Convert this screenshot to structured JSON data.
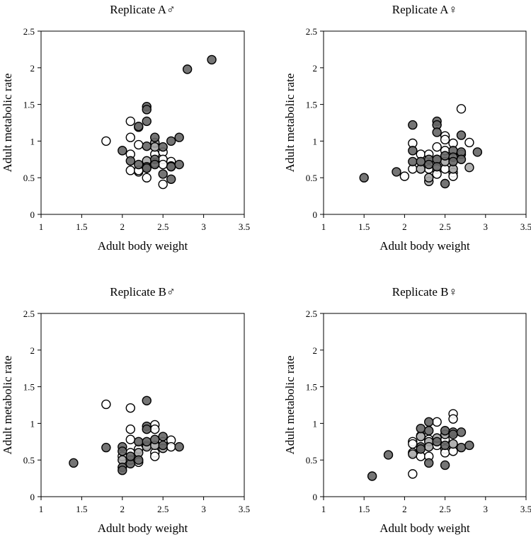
{
  "chart_data": [
    {
      "type": "scatter",
      "title": "Replicate A♂",
      "xlabel": "Adult body weight",
      "ylabel": "Adult metabolic rate",
      "xlim": [
        1,
        3.5
      ],
      "ylim": [
        0,
        2.5
      ],
      "xticks": [
        "1",
        "1.5",
        "2",
        "2.5",
        "3",
        "3.5"
      ],
      "yticks": [
        "0",
        "0.5",
        "1",
        "1.5",
        "2",
        "2.5"
      ],
      "series": [
        {
          "name": "white",
          "color": "#ffffff",
          "points": [
            [
              1.8,
              1.0
            ],
            [
              2.1,
              1.27
            ],
            [
              2.1,
              1.05
            ],
            [
              2.1,
              0.82
            ],
            [
              2.1,
              0.6
            ],
            [
              2.2,
              0.95
            ],
            [
              2.2,
              0.58
            ],
            [
              2.2,
              0.6
            ],
            [
              2.3,
              0.5
            ],
            [
              2.4,
              0.97
            ],
            [
              2.4,
              0.82
            ],
            [
              2.4,
              0.7
            ],
            [
              2.5,
              0.85
            ],
            [
              2.5,
              0.75
            ],
            [
              2.5,
              0.68
            ],
            [
              2.5,
              0.41
            ],
            [
              2.6,
              0.72
            ]
          ]
        },
        {
          "name": "dark",
          "color": "#666666",
          "points": [
            [
              2.0,
              0.87
            ],
            [
              2.1,
              0.73
            ],
            [
              2.2,
              1.2
            ],
            [
              2.2,
              0.68
            ],
            [
              2.3,
              1.47
            ],
            [
              2.3,
              1.43
            ],
            [
              2.3,
              1.27
            ],
            [
              2.3,
              0.93
            ],
            [
              2.3,
              0.65
            ],
            [
              2.3,
              0.63
            ],
            [
              2.4,
              1.05
            ],
            [
              2.4,
              0.75
            ],
            [
              2.4,
              0.68
            ],
            [
              2.5,
              0.92
            ],
            [
              2.5,
              0.55
            ],
            [
              2.6,
              1.0
            ],
            [
              2.6,
              0.48
            ],
            [
              2.6,
              0.65
            ],
            [
              2.7,
              1.05
            ],
            [
              2.7,
              0.68
            ],
            [
              2.8,
              1.98
            ],
            [
              3.1,
              2.11
            ]
          ]
        },
        {
          "name": "light",
          "color": "#a8a8a8",
          "points": [
            [
              2.2,
              1.19
            ],
            [
              2.3,
              0.73
            ],
            [
              2.4,
              0.98
            ],
            [
              2.4,
              0.92
            ],
            [
              2.6,
              0.66
            ]
          ]
        }
      ]
    },
    {
      "type": "scatter",
      "title": "Replicate A♀",
      "xlabel": "Adult body weight",
      "ylabel": "Adult metabolic rate",
      "xlim": [
        1,
        3.5
      ],
      "ylim": [
        0,
        2.5
      ],
      "xticks": [
        "1",
        "1.5",
        "2",
        "2.5",
        "3",
        "3.5"
      ],
      "yticks": [
        "0",
        "0.5",
        "1",
        "1.5",
        "2",
        "2.5"
      ],
      "series": [
        {
          "name": "white",
          "color": "#ffffff",
          "points": [
            [
              2.0,
              0.52
            ],
            [
              2.1,
              0.97
            ],
            [
              2.1,
              0.62
            ],
            [
              2.2,
              0.82
            ],
            [
              2.2,
              0.62
            ],
            [
              2.3,
              0.82
            ],
            [
              2.3,
              0.62
            ],
            [
              2.4,
              0.92
            ],
            [
              2.4,
              0.62
            ],
            [
              2.4,
              0.55
            ],
            [
              2.5,
              1.07
            ],
            [
              2.5,
              1.02
            ],
            [
              2.5,
              0.87
            ],
            [
              2.5,
              0.62
            ],
            [
              2.6,
              0.97
            ],
            [
              2.6,
              0.57
            ],
            [
              2.6,
              0.52
            ],
            [
              2.7,
              1.44
            ],
            [
              2.8,
              0.98
            ]
          ]
        },
        {
          "name": "dark",
          "color": "#666666",
          "points": [
            [
              1.5,
              0.5
            ],
            [
              1.9,
              0.58
            ],
            [
              2.1,
              1.22
            ],
            [
              2.1,
              0.87
            ],
            [
              2.1,
              0.72
            ],
            [
              2.2,
              0.72
            ],
            [
              2.3,
              0.75
            ],
            [
              2.3,
              0.68
            ],
            [
              2.4,
              1.27
            ],
            [
              2.4,
              1.22
            ],
            [
              2.4,
              1.12
            ],
            [
              2.4,
              0.75
            ],
            [
              2.4,
              0.65
            ],
            [
              2.5,
              0.42
            ],
            [
              2.5,
              0.8
            ],
            [
              2.6,
              0.87
            ],
            [
              2.6,
              0.78
            ],
            [
              2.6,
              0.72
            ],
            [
              2.7,
              1.08
            ],
            [
              2.7,
              0.85
            ],
            [
              2.7,
              0.75
            ],
            [
              2.9,
              0.85
            ]
          ]
        },
        {
          "name": "light",
          "color": "#a8a8a8",
          "points": [
            [
              2.2,
              0.62
            ],
            [
              2.3,
              0.45
            ],
            [
              2.3,
              0.5
            ],
            [
              2.4,
              0.75
            ],
            [
              2.5,
              0.72
            ],
            [
              2.6,
              0.62
            ],
            [
              2.7,
              0.82
            ],
            [
              2.8,
              0.64
            ]
          ]
        }
      ]
    },
    {
      "type": "scatter",
      "title": "Replicate B♂",
      "xlabel": "Adult body weight",
      "ylabel": "Adult metabolic rate",
      "xlim": [
        1,
        3.5
      ],
      "ylim": [
        0,
        2.5
      ],
      "xticks": [
        "1",
        "1.5",
        "2",
        "2.5",
        "3",
        "3.5"
      ],
      "yticks": [
        "0",
        "0.5",
        "1",
        "1.5",
        "2",
        "2.5"
      ],
      "series": [
        {
          "name": "white",
          "color": "#ffffff",
          "points": [
            [
              1.8,
              1.26
            ],
            [
              2.1,
              1.21
            ],
            [
              2.1,
              0.92
            ],
            [
              2.1,
              0.78
            ],
            [
              2.0,
              0.55
            ],
            [
              2.1,
              0.6
            ],
            [
              2.2,
              0.65
            ],
            [
              2.2,
              0.47
            ],
            [
              2.3,
              0.7
            ],
            [
              2.4,
              0.98
            ],
            [
              2.4,
              0.92
            ],
            [
              2.4,
              0.6
            ],
            [
              2.4,
              0.55
            ],
            [
              2.5,
              0.75
            ],
            [
              2.6,
              0.77
            ],
            [
              2.6,
              0.68
            ]
          ]
        },
        {
          "name": "dark",
          "color": "#666666",
          "points": [
            [
              1.4,
              0.46
            ],
            [
              1.8,
              0.67
            ],
            [
              2.0,
              0.68
            ],
            [
              2.0,
              0.62
            ],
            [
              2.0,
              0.4
            ],
            [
              2.0,
              0.36
            ],
            [
              2.1,
              0.45
            ],
            [
              2.1,
              0.55
            ],
            [
              2.2,
              0.75
            ],
            [
              2.2,
              0.5
            ],
            [
              2.3,
              1.31
            ],
            [
              2.3,
              0.96
            ],
            [
              2.3,
              0.92
            ],
            [
              2.3,
              0.75
            ],
            [
              2.4,
              0.78
            ],
            [
              2.5,
              0.82
            ],
            [
              2.5,
              0.7
            ],
            [
              2.7,
              0.68
            ]
          ]
        },
        {
          "name": "light",
          "color": "#a8a8a8",
          "points": [
            [
              2.0,
              0.5
            ],
            [
              2.1,
              0.5
            ],
            [
              2.2,
              0.6
            ],
            [
              2.3,
              0.68
            ],
            [
              2.4,
              0.7
            ],
            [
              2.5,
              0.66
            ]
          ]
        }
      ]
    },
    {
      "type": "scatter",
      "title": "Replicate B♀",
      "xlabel": "Adult body weight",
      "ylabel": "Adult metabolic rate",
      "xlim": [
        1,
        3.5
      ],
      "ylim": [
        0,
        2.5
      ],
      "xticks": [
        "1",
        "1.5",
        "2",
        "2.5",
        "3",
        "3.5"
      ],
      "yticks": [
        "0",
        "0.5",
        "1",
        "1.5",
        "2",
        "2.5"
      ],
      "series": [
        {
          "name": "white",
          "color": "#ffffff",
          "points": [
            [
              2.1,
              0.75
            ],
            [
              2.1,
              0.72
            ],
            [
              2.1,
              0.6
            ],
            [
              2.1,
              0.31
            ],
            [
              2.2,
              0.83
            ],
            [
              2.2,
              0.55
            ],
            [
              2.3,
              0.78
            ],
            [
              2.3,
              0.55
            ],
            [
              2.4,
              1.02
            ],
            [
              2.4,
              0.7
            ],
            [
              2.5,
              0.78
            ],
            [
              2.5,
              0.65
            ],
            [
              2.5,
              0.6
            ],
            [
              2.6,
              1.13
            ],
            [
              2.6,
              1.06
            ],
            [
              2.6,
              0.62
            ]
          ]
        },
        {
          "name": "dark",
          "color": "#666666",
          "points": [
            [
              1.6,
              0.28
            ],
            [
              1.8,
              0.57
            ],
            [
              2.2,
              0.93
            ],
            [
              2.2,
              0.68
            ],
            [
              2.2,
              0.65
            ],
            [
              2.3,
              1.02
            ],
            [
              2.3,
              0.9
            ],
            [
              2.3,
              0.46
            ],
            [
              2.4,
              0.75
            ],
            [
              2.5,
              0.43
            ],
            [
              2.5,
              0.7
            ],
            [
              2.5,
              0.9
            ],
            [
              2.6,
              0.88
            ],
            [
              2.6,
              0.85
            ],
            [
              2.7,
              0.88
            ],
            [
              2.7,
              0.67
            ],
            [
              2.8,
              0.7
            ]
          ]
        },
        {
          "name": "light",
          "color": "#a8a8a8",
          "points": [
            [
              2.1,
              0.58
            ],
            [
              2.2,
              0.82
            ],
            [
              2.3,
              0.75
            ],
            [
              2.3,
              0.68
            ],
            [
              2.4,
              0.8
            ],
            [
              2.5,
              0.85
            ],
            [
              2.6,
              0.72
            ]
          ]
        }
      ]
    }
  ]
}
